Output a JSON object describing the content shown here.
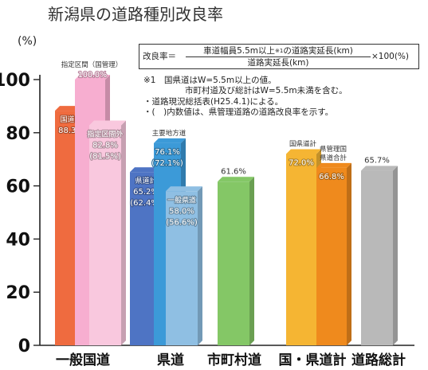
{
  "title": "新潟県の道路種別改良率",
  "y_unit": "(%)",
  "formula": {
    "lhs": "改良率＝",
    "numerator": "車道幅員5.5m以上",
    "numerator_sup": "※1",
    "numerator_rest": "の道路実延長(km)",
    "denominator": "道路実延長(km)",
    "rhs": "×100(%)"
  },
  "notes": [
    "※1　国県道はW=5.5m以上の値。",
    "市町村道及び総計はW=5.5m未満を含む。",
    "・道路現況総括表(H25.4.1)による。",
    "・(　)内数値は、県管理道路の道路改良率を示す。"
  ],
  "colors": {
    "kokudo_kei": "#ef6b3f",
    "shitei_kanri": "#f7aed0",
    "shitei_gai": "#f9c8de",
    "kendo_kei": "#4e74c4",
    "shuyo_chiho": "#3c9ad8",
    "ippan_kendo": "#8fbfe3",
    "shichoson": "#84c766",
    "kokuken_kei": "#f5b533",
    "ken_kanri": "#ef8a1d",
    "total": "#b9b9b9"
  },
  "chart_data": {
    "type": "bar",
    "ylim": [
      0,
      100
    ],
    "yticks": [
      0,
      20,
      40,
      60,
      80,
      100
    ],
    "categories": [
      "一般国道",
      "県道",
      "市町村道",
      "国・県道計",
      "道路総計"
    ],
    "bars": [
      {
        "category": "一般国道",
        "label": [
          "国道計"
        ],
        "value": 88.3,
        "value_text": "88.3%",
        "paren_text": "",
        "color_key": "kokudo_kei"
      },
      {
        "category": "一般国道",
        "label": [
          "指定区間（国管理）"
        ],
        "value": 100.0,
        "value_text": "100.0%",
        "paren_text": "",
        "color_key": "shitei_kanri"
      },
      {
        "category": "一般国道",
        "label": [
          "指定区間外"
        ],
        "value": 82.8,
        "value_text": "82.8%",
        "paren_text": "(81.5%)",
        "color_key": "shitei_gai"
      },
      {
        "category": "県道",
        "label": [
          "県道計"
        ],
        "value": 65.2,
        "value_text": "65.2%",
        "paren_text": "(62.4%)",
        "color_key": "kendo_kei"
      },
      {
        "category": "県道",
        "label": [
          "主要地方道"
        ],
        "value": 76.1,
        "value_text": "76.1%",
        "paren_text": "(72.1%)",
        "color_key": "shuyo_chiho"
      },
      {
        "category": "県道",
        "label": [
          "一般県道"
        ],
        "value": 58.0,
        "value_text": "58.0%",
        "paren_text": "(56.6%)",
        "color_key": "ippan_kendo"
      },
      {
        "category": "市町村道",
        "label": [],
        "value": 61.6,
        "value_text": "61.6%",
        "paren_text": "",
        "color_key": "shichoson"
      },
      {
        "category": "国・県道計",
        "label": [
          "国県道計"
        ],
        "value": 72.0,
        "value_text": "72.0%",
        "paren_text": "",
        "color_key": "kokuken_kei"
      },
      {
        "category": "国・県道計",
        "label": [
          "県管理国",
          "県道合計"
        ],
        "value": 66.8,
        "value_text": "66.8%",
        "paren_text": "",
        "color_key": "ken_kanri"
      },
      {
        "category": "道路総計",
        "label": [],
        "value": 65.7,
        "value_text": "65.7%",
        "paren_text": "",
        "color_key": "total"
      }
    ]
  }
}
